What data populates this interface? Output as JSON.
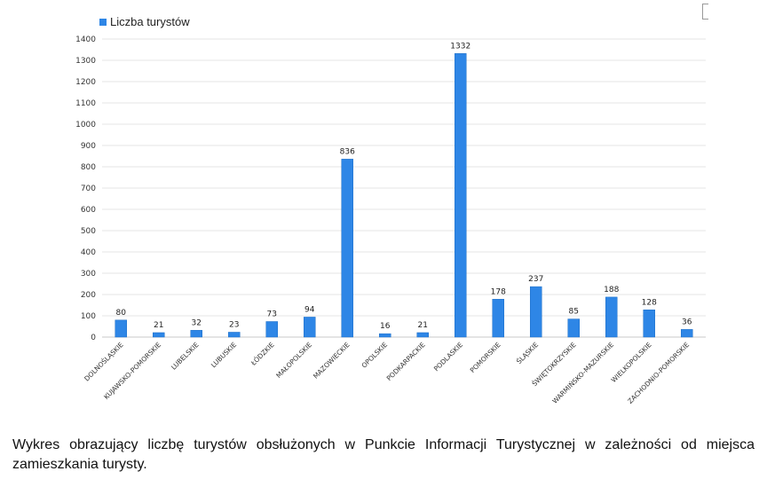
{
  "chart_data": {
    "type": "bar",
    "legend": {
      "label": "Liczba turystów",
      "placement": "top-left"
    },
    "categories": [
      "DOLNOŚLĄSKIE",
      "KUJAWSKO-POMORSKIE",
      "LUBELSKIE",
      "LUBUSKIE",
      "ŁÓDZKIE",
      "MAŁOPOLSKIE",
      "MAZOWIECKIE",
      "OPOLSKIE",
      "PODKARPACKIE",
      "PODLASKIE",
      "POMORSKIE",
      "ŚLĄSKIE",
      "ŚWIĘTOKRZYSKIE",
      "WARMIŃSKO-MAZURSKIE",
      "WIELKOPOLSKIE",
      "ZACHODNIO-POMORSKIE"
    ],
    "series": [
      {
        "name": "Liczba turystów",
        "values": [
          80,
          21,
          32,
          23,
          73,
          94,
          836,
          16,
          21,
          1332,
          178,
          237,
          85,
          188,
          128,
          36
        ]
      }
    ],
    "data_labels": [
      "80",
      "21",
      "32",
      "23",
      "73",
      "94",
      "836",
      "16",
      "21",
      "1332",
      "178",
      "237",
      "85",
      "188",
      "128",
      "36"
    ],
    "yticks": [
      0,
      100,
      200,
      300,
      400,
      500,
      600,
      700,
      800,
      900,
      1000,
      1100,
      1200,
      1300,
      1400
    ],
    "ylim": [
      0,
      1400
    ],
    "grid": true,
    "bar_color": "#2e86e6"
  },
  "caption": "Wykres obrazujący liczbę turystów obsłużonych w Punkcie Informacji Turystycznej w zależności od miejsca zamieszkania turysty."
}
